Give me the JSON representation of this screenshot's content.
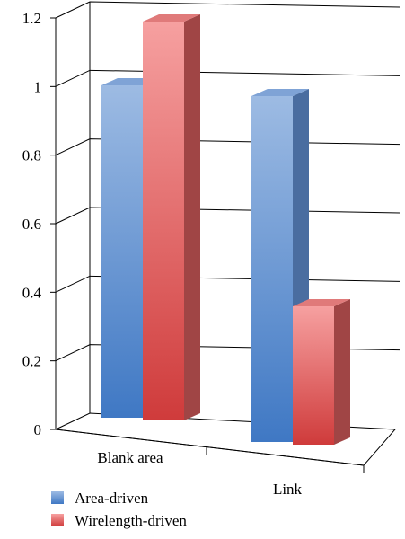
{
  "chart_data": {
    "type": "bar",
    "style": "3d-clustered",
    "categories": [
      "Blank area",
      "Link"
    ],
    "series": [
      {
        "name": "Area-driven",
        "values": [
          1.0,
          1.0
        ]
      },
      {
        "name": "Wirelength-driven",
        "values": [
          1.2,
          0.4
        ]
      }
    ],
    "ylim": [
      0,
      1.2
    ],
    "yticks": [
      "0",
      "0.2",
      "0.4",
      "0.6",
      "0.8",
      "1",
      "1.2"
    ],
    "grid": true,
    "legend": "bottom-left",
    "colors": {
      "Area-driven": {
        "top": "#9dbbe3",
        "bottom": "#3f78c4",
        "side": "#4a6da0",
        "cap": "#7fa3d6"
      },
      "Wirelength-driven": {
        "top": "#f6a0a0",
        "bottom": "#cf3b3b",
        "side": "#a04545",
        "cap": "#e07a7a"
      }
    }
  }
}
